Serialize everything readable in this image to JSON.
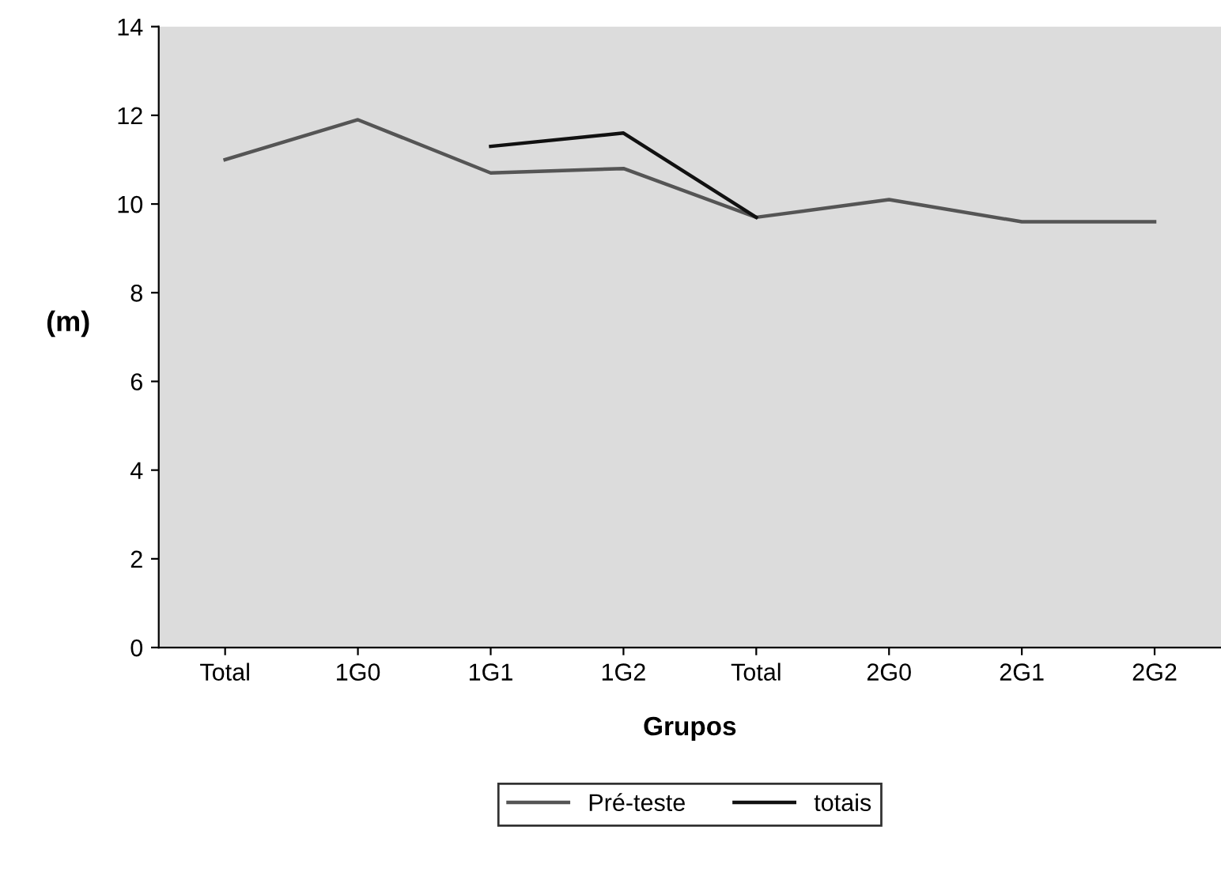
{
  "chart_data": {
    "type": "line",
    "xlabel": "Grupos",
    "ylabel": "(m)",
    "categories": [
      "Total",
      "1G0",
      "1G1",
      "1G2",
      "Total",
      "2G0",
      "2G1",
      "2G2"
    ],
    "series": [
      {
        "name": "Pré-teste",
        "color": "#555555",
        "values": [
          11.0,
          11.9,
          10.7,
          10.8,
          9.7,
          10.1,
          9.6,
          9.6
        ]
      },
      {
        "name": "totais",
        "color": "#111111",
        "values": [
          null,
          null,
          11.3,
          11.6,
          9.7,
          null,
          null,
          null
        ]
      }
    ],
    "ylim": [
      0,
      14
    ],
    "yticks": [
      0,
      2,
      4,
      6,
      8,
      10,
      12,
      14
    ],
    "grid": false,
    "legend": "bottom",
    "marker": "none",
    "line_style": "solid"
  }
}
